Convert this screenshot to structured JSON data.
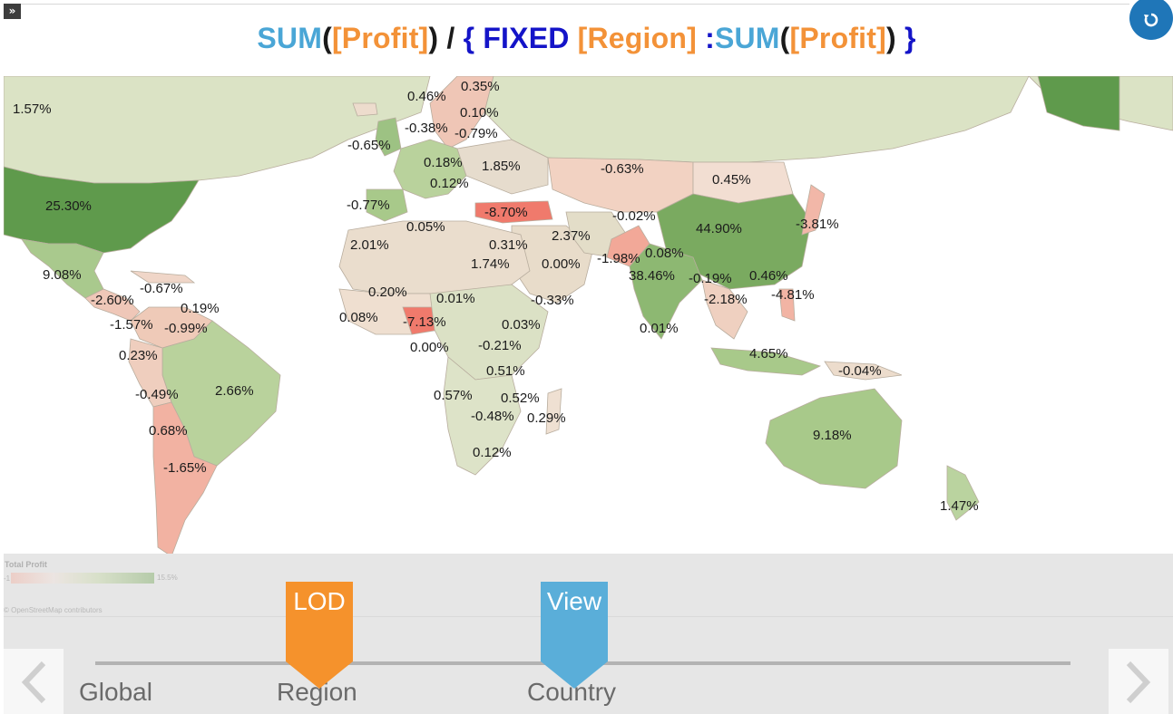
{
  "formula": {
    "sum1": "SUM",
    "open1": "(",
    "field1": "[Profit]",
    "close1": ")",
    "slash": " / ",
    "brace_open": "{",
    "fixed": "FIXED",
    "field2": "[Region]",
    "colon": " :",
    "sum2": "SUM",
    "open2": "(",
    "field3": "[Profit]",
    "close2": ")",
    "brace_close": "}"
  },
  "map_labels": [
    "1.57%",
    "25.30%",
    "9.08%",
    "-2.60%",
    "-0.67%",
    "0.19%",
    "-1.57%",
    "-0.99%",
    "0.23%",
    "-0.49%",
    "2.66%",
    "0.68%",
    "-1.65%",
    "0.46%",
    "0.35%",
    "-0.38%",
    "0.10%",
    "-0.79%",
    "-0.65%",
    "0.18%",
    "1.85%",
    "0.12%",
    "-0.77%",
    "0.05%",
    "-8.70%",
    "-0.63%",
    "0.45%",
    "-0.02%",
    "44.90%",
    "-3.81%",
    "2.01%",
    "0.31%",
    "2.37%",
    "1.74%",
    "0.00%",
    "-1.98%",
    "0.08%",
    "38.46%",
    "0.20%",
    "0.01%",
    "-0.33%",
    "-0.19%",
    "0.46%",
    "-2.18%",
    "-4.81%",
    "0.08%",
    "-7.13%",
    "0.03%",
    "0.00%",
    "-0.21%",
    "0.01%",
    "4.65%",
    "0.51%",
    "-0.04%",
    "0.57%",
    "0.52%",
    "-0.48%",
    "0.29%",
    "0.12%",
    "9.18%",
    "1.47%"
  ],
  "legend": {
    "title": "Total Profit",
    "min": "-1",
    "max": "15.5%",
    "credit": "© OpenStreetMap contributors"
  },
  "slider": {
    "stops": [
      "Global",
      "Region",
      "Country"
    ],
    "markers": [
      {
        "label": "LOD",
        "color": "#f5922c",
        "position": "Region"
      },
      {
        "label": "View",
        "color": "#5aaed9",
        "position": "Country"
      }
    ]
  },
  "colors": {
    "positive": "#7aaa60",
    "negative": "#f06a5a",
    "neutral": "#ecdccc",
    "reset": "#1f76b8"
  },
  "icons": {
    "expand": "double-chevron-right-icon",
    "reset": "reset-icon",
    "prev": "chevron-left-icon",
    "next": "chevron-right-icon"
  }
}
